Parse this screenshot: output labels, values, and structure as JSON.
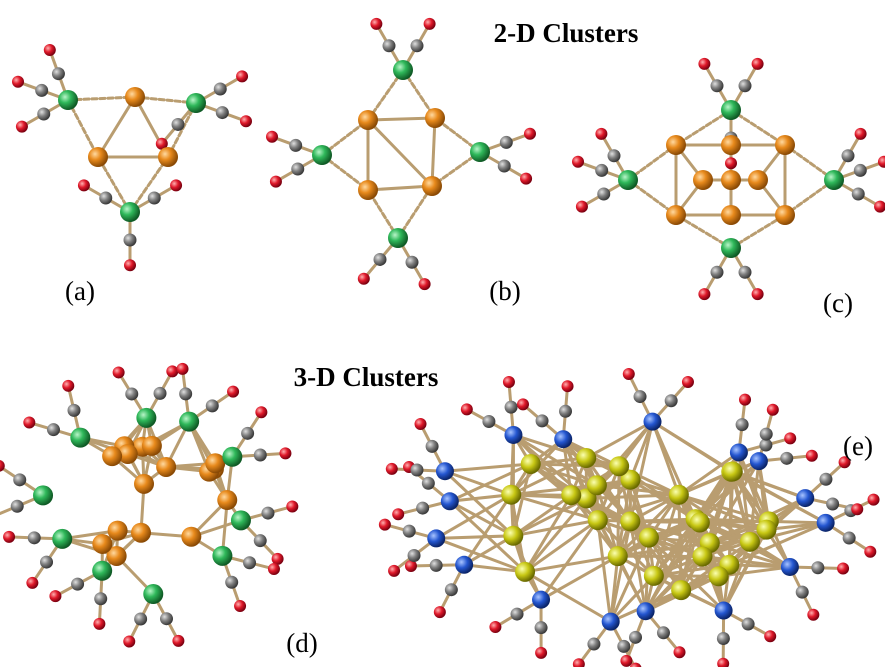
{
  "figure": {
    "title_2d": "2-D Clusters",
    "title_3d": "3-D Clusters",
    "labels": [
      "(a)",
      "(b)",
      "(c)",
      "(d)",
      "(e)"
    ]
  }
}
